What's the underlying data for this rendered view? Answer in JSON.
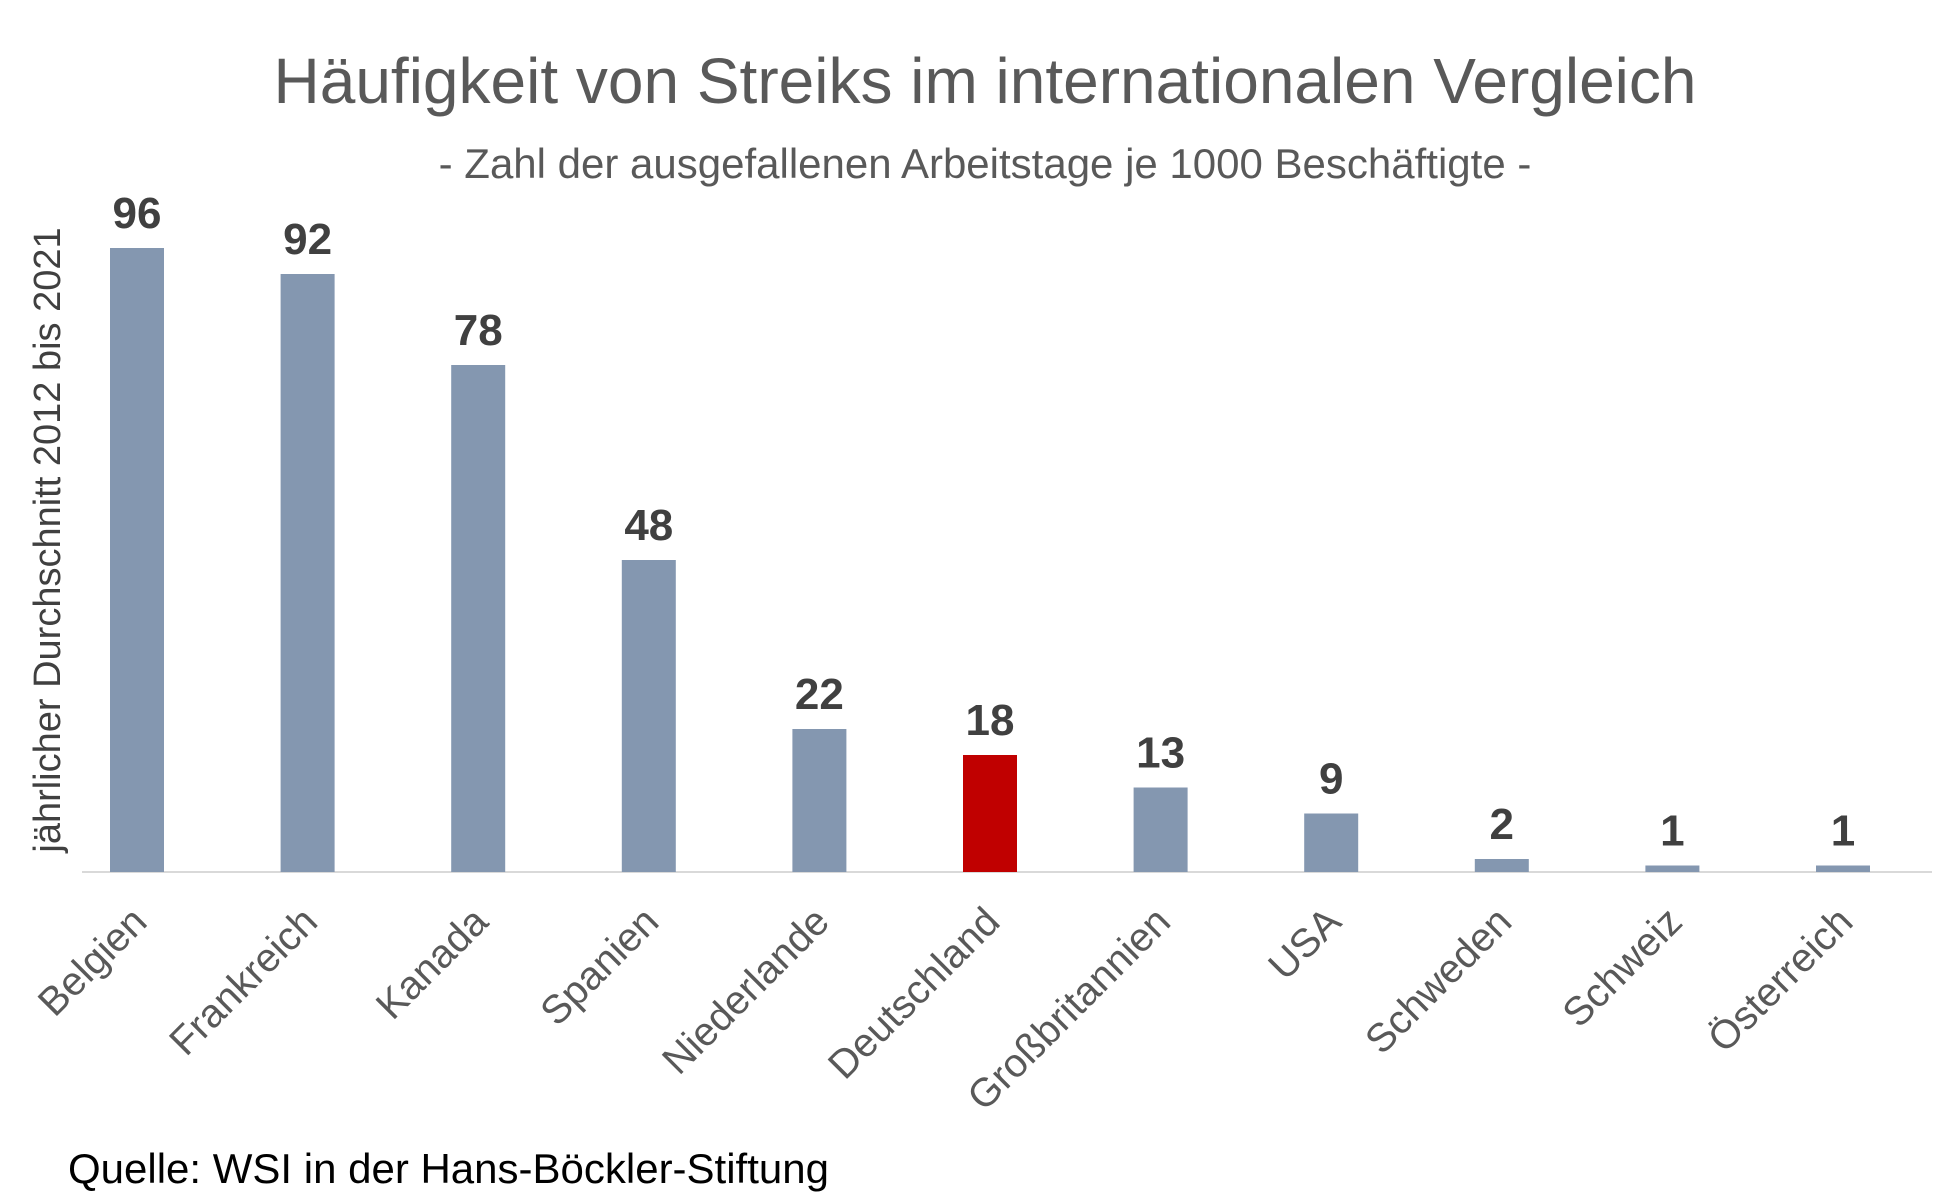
{
  "chart_data": {
    "type": "bar",
    "title": "Häufigkeit von Streiks im internationalen Vergleich",
    "subtitle": "- Zahl der ausgefallenen Arbeitstage je 1000 Beschäftigte -",
    "xlabel": "",
    "ylabel": "jährlicher Durchschnitt 2012 bis 2021",
    "categories": [
      "Belgien",
      "Frankreich",
      "Kanada",
      "Spanien",
      "Niederlande",
      "Deutschland",
      "Großbritannien",
      "USA",
      "Schweden",
      "Schweiz",
      "Österreich"
    ],
    "values": [
      96,
      92,
      78,
      48,
      22,
      18,
      13,
      9,
      2,
      1,
      1
    ],
    "highlight_category": "Deutschland",
    "ylim": [
      0,
      96
    ],
    "grid": false,
    "legend": "none",
    "colors": {
      "bar": "#8497b0",
      "highlight": "#c00000",
      "baseline": "#d9d9d9"
    }
  },
  "source": "Quelle: WSI in der Hans-Böckler-Stiftung"
}
